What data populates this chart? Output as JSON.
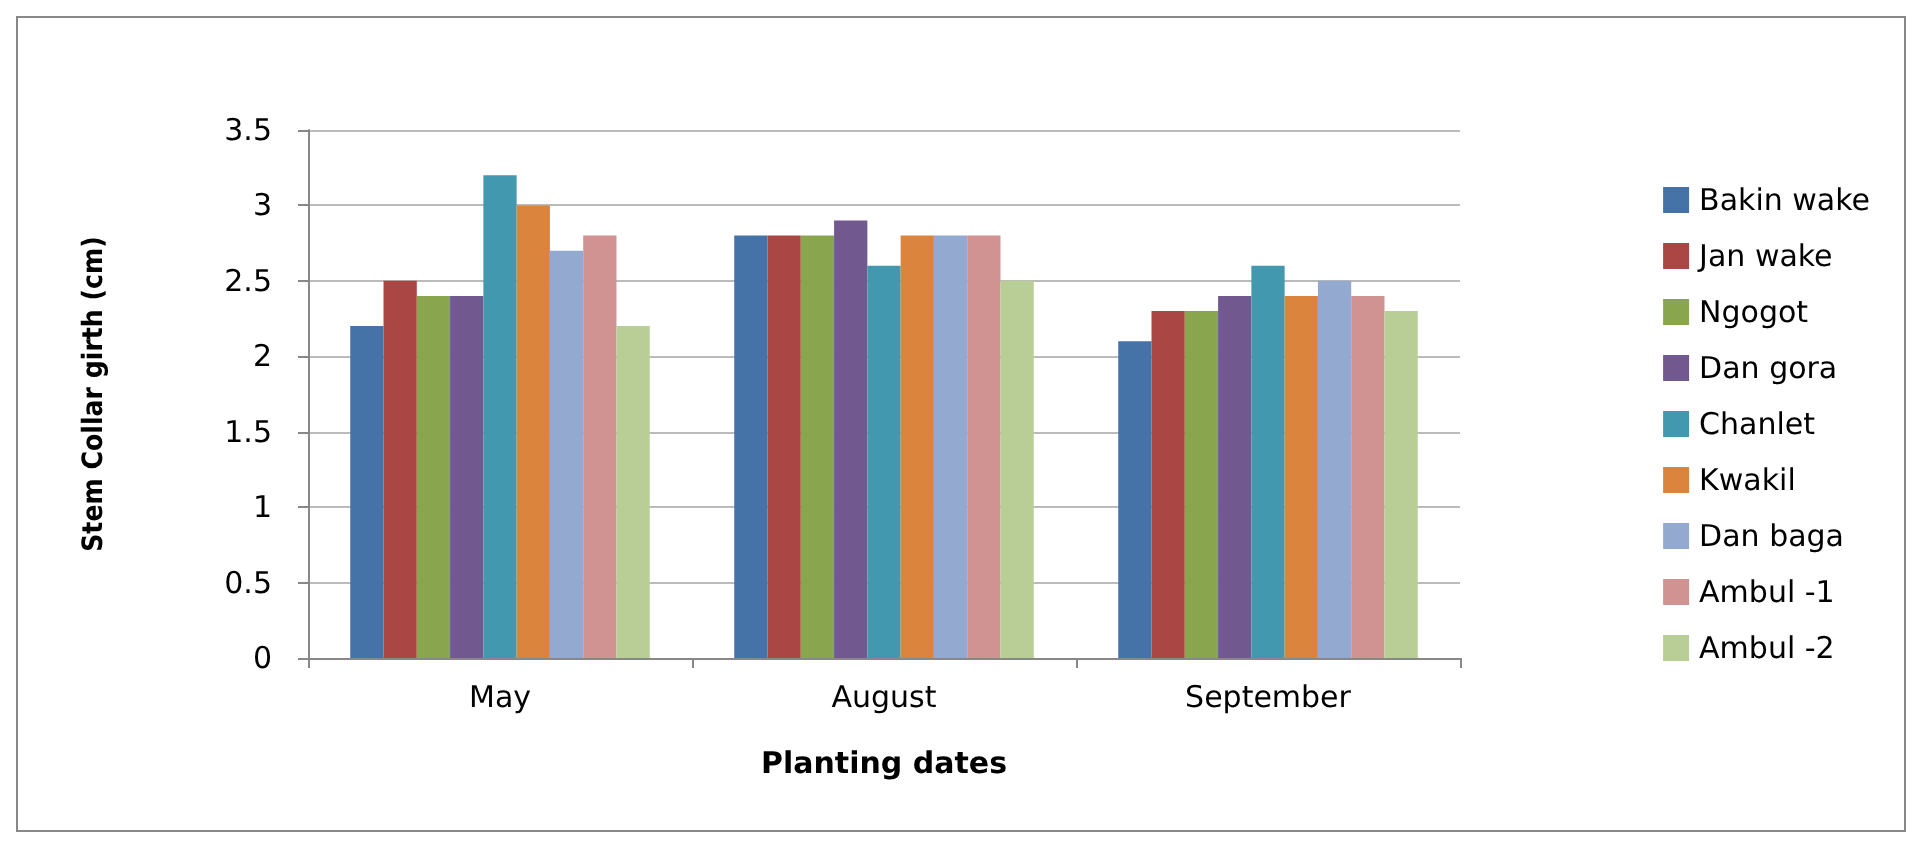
{
  "chart_data": {
    "type": "bar",
    "xlabel": "Planting dates",
    "ylabel": "Stem Collar girth (cm)",
    "categories": [
      "May",
      "August",
      "September"
    ],
    "series": [
      {
        "name": "Bakin wake",
        "color": "#4572a7",
        "values": [
          2.2,
          2.8,
          2.1
        ]
      },
      {
        "name": "Jan wake",
        "color": "#aa4643",
        "values": [
          2.5,
          2.8,
          2.3
        ]
      },
      {
        "name": "Ngogot",
        "color": "#89a54e",
        "values": [
          2.4,
          2.8,
          2.3
        ]
      },
      {
        "name": "Dan gora",
        "color": "#71588f",
        "values": [
          2.4,
          2.9,
          2.4
        ]
      },
      {
        "name": "Chanlet",
        "color": "#4198af",
        "values": [
          3.2,
          2.6,
          2.6
        ]
      },
      {
        "name": "Kwakil",
        "color": "#db843d",
        "values": [
          3.0,
          2.8,
          2.4
        ]
      },
      {
        "name": "Dan baga",
        "color": "#93a9cf",
        "values": [
          2.7,
          2.8,
          2.5
        ]
      },
      {
        "name": "Ambul -1",
        "color": "#d19392",
        "values": [
          2.8,
          2.8,
          2.4
        ]
      },
      {
        "name": "Ambul -2",
        "color": "#b9cd96",
        "values": [
          2.2,
          2.5,
          2.3
        ]
      }
    ],
    "ylim": [
      0,
      3.5
    ],
    "yticks": [
      0,
      0.5,
      1,
      1.5,
      2,
      2.5,
      3,
      3.5
    ],
    "grid": "y",
    "legend": "right"
  }
}
